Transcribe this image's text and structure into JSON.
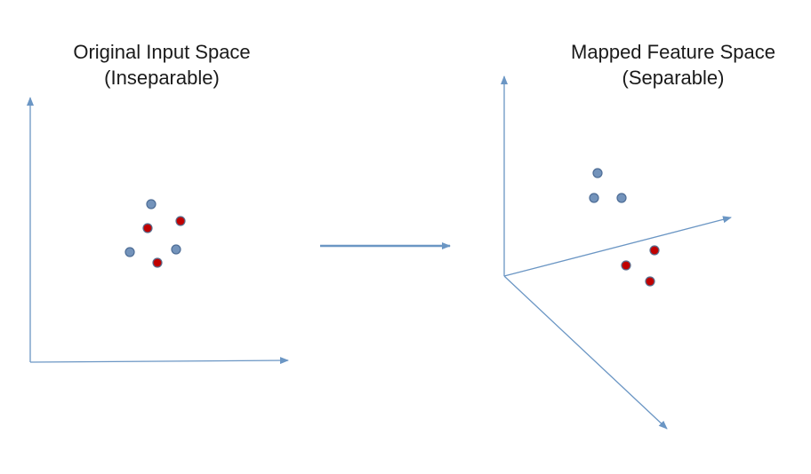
{
  "left_panel": {
    "title_line1": "Original Input Space",
    "title_line2": "(Inseparable)",
    "points": [
      {
        "cls": "blue"
      },
      {
        "cls": "red"
      },
      {
        "cls": "red"
      },
      {
        "cls": "blue"
      },
      {
        "cls": "blue"
      },
      {
        "cls": "red"
      }
    ]
  },
  "right_panel": {
    "title_line1": "Mapped Feature Space",
    "title_line2": "(Separable)",
    "points": [
      {
        "cls": "blue"
      },
      {
        "cls": "blue"
      },
      {
        "cls": "blue"
      },
      {
        "cls": "red"
      },
      {
        "cls": "red"
      },
      {
        "cls": "red"
      }
    ]
  },
  "colors": {
    "axis": "#6b96c4",
    "blue_point": "#7393bb",
    "blue_point_stroke": "#4e6d96",
    "red_point": "#c00000",
    "red_point_stroke": "#5a6f8f"
  }
}
